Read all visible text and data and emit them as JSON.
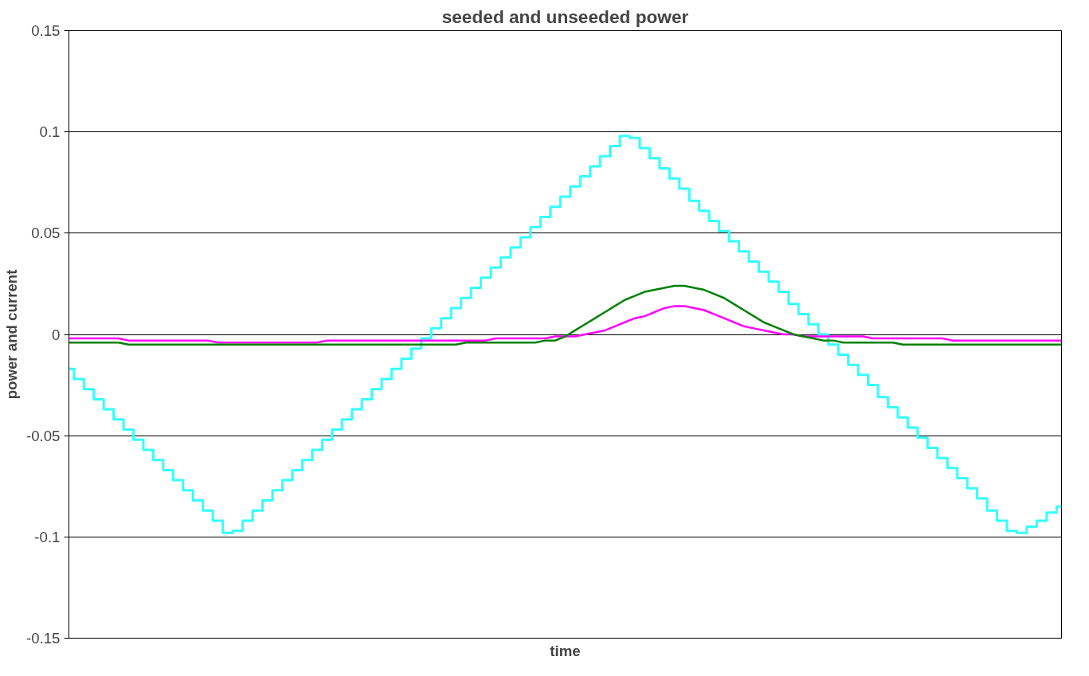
{
  "chart_data": {
    "type": "line",
    "title": "seeded and unseeded power",
    "xlabel": "time",
    "ylabel": "power and current",
    "categories": [
      null,
      null,
      null,
      null,
      null,
      null,
      null,
      null,
      null,
      null,
      null,
      null,
      null,
      null,
      null,
      null,
      null,
      null,
      null,
      null,
      null,
      null,
      null,
      null,
      null,
      null,
      null,
      null,
      null,
      null,
      null,
      null,
      null,
      null,
      null,
      null,
      null,
      null,
      null,
      null,
      null,
      null,
      null,
      null,
      null,
      null,
      null,
      null,
      null,
      null,
      null,
      null,
      null,
      null,
      null,
      null,
      null,
      null,
      null,
      null,
      null,
      null,
      null,
      null,
      null,
      null,
      null,
      null,
      null,
      null,
      null,
      null,
      null,
      null,
      null,
      null,
      null,
      null,
      null,
      null,
      null,
      null,
      null,
      null,
      null,
      null,
      null,
      null,
      null,
      null,
      null,
      null,
      null,
      null,
      null,
      null,
      null,
      null,
      null,
      null,
      null
    ],
    "ylim": [
      -0.15,
      0.15
    ],
    "yticks": [
      -0.15,
      -0.1,
      -0.05,
      0,
      0.05,
      0.1,
      0.15
    ],
    "grid": "y",
    "line_style": "solid",
    "series": [
      {
        "type": "step",
        "color": "#33ffff",
        "values": [
          -0.017,
          -0.022,
          -0.027,
          -0.032,
          -0.037,
          -0.042,
          -0.047,
          -0.052,
          -0.057,
          -0.062,
          -0.067,
          -0.072,
          -0.077,
          -0.082,
          -0.087,
          -0.092,
          -0.098,
          -0.097,
          -0.092,
          -0.087,
          -0.082,
          -0.077,
          -0.072,
          -0.067,
          -0.062,
          -0.057,
          -0.052,
          -0.047,
          -0.042,
          -0.037,
          -0.032,
          -0.027,
          -0.022,
          -0.017,
          -0.012,
          -0.007,
          -0.002,
          0.003,
          0.008,
          0.013,
          0.018,
          0.023,
          0.028,
          0.033,
          0.038,
          0.043,
          0.048,
          0.053,
          0.058,
          0.063,
          0.068,
          0.073,
          0.078,
          0.083,
          0.088,
          0.093,
          0.098,
          0.097,
          0.092,
          0.087,
          0.082,
          0.077,
          0.072,
          0.066,
          0.061,
          0.056,
          0.051,
          0.046,
          0.041,
          0.036,
          0.031,
          0.026,
          0.021,
          0.015,
          0.01,
          0.005,
          0.0,
          -0.005,
          -0.01,
          -0.015,
          -0.02,
          -0.025,
          -0.031,
          -0.036,
          -0.041,
          -0.046,
          -0.051,
          -0.056,
          -0.061,
          -0.066,
          -0.071,
          -0.076,
          -0.081,
          -0.087,
          -0.092,
          -0.097,
          -0.098,
          -0.095,
          -0.092,
          -0.088,
          -0.085
        ]
      },
      {
        "color": "#ff00ff",
        "values": [
          -0.002,
          -0.002,
          -0.002,
          -0.002,
          -0.002,
          -0.002,
          -0.003,
          -0.003,
          -0.003,
          -0.003,
          -0.003,
          -0.003,
          -0.003,
          -0.003,
          -0.003,
          -0.004,
          -0.004,
          -0.004,
          -0.004,
          -0.004,
          -0.004,
          -0.004,
          -0.004,
          -0.004,
          -0.004,
          -0.004,
          -0.003,
          -0.003,
          -0.003,
          -0.003,
          -0.003,
          -0.003,
          -0.003,
          -0.003,
          -0.003,
          -0.003,
          -0.003,
          -0.003,
          -0.003,
          -0.003,
          -0.003,
          -0.003,
          -0.003,
          -0.002,
          -0.002,
          -0.002,
          -0.002,
          -0.002,
          -0.002,
          -0.001,
          -0.001,
          -0.001,
          0.0,
          0.001,
          0.002,
          0.004,
          0.006,
          0.008,
          0.009,
          0.011,
          0.013,
          0.014,
          0.014,
          0.013,
          0.012,
          0.01,
          0.008,
          0.006,
          0.004,
          0.003,
          0.002,
          0.001,
          0.0,
          0.0,
          -0.001,
          -0.001,
          -0.001,
          -0.001,
          -0.001,
          -0.001,
          -0.001,
          -0.002,
          -0.002,
          -0.002,
          -0.002,
          -0.002,
          -0.002,
          -0.002,
          -0.002,
          -0.003,
          -0.003,
          -0.003,
          -0.003,
          -0.003,
          -0.003,
          -0.003,
          -0.003,
          -0.003,
          -0.003,
          -0.003,
          -0.003
        ]
      },
      {
        "color": "#008000",
        "values": [
          -0.004,
          -0.004,
          -0.004,
          -0.004,
          -0.004,
          -0.004,
          -0.005,
          -0.005,
          -0.005,
          -0.005,
          -0.005,
          -0.005,
          -0.005,
          -0.005,
          -0.005,
          -0.005,
          -0.005,
          -0.005,
          -0.005,
          -0.005,
          -0.005,
          -0.005,
          -0.005,
          -0.005,
          -0.005,
          -0.005,
          -0.005,
          -0.005,
          -0.005,
          -0.005,
          -0.005,
          -0.005,
          -0.005,
          -0.005,
          -0.005,
          -0.005,
          -0.005,
          -0.005,
          -0.005,
          -0.005,
          -0.004,
          -0.004,
          -0.004,
          -0.004,
          -0.004,
          -0.004,
          -0.004,
          -0.004,
          -0.003,
          -0.003,
          -0.001,
          0.002,
          0.005,
          0.008,
          0.011,
          0.014,
          0.017,
          0.019,
          0.021,
          0.022,
          0.023,
          0.024,
          0.024,
          0.023,
          0.022,
          0.02,
          0.018,
          0.015,
          0.012,
          0.009,
          0.006,
          0.004,
          0.002,
          0.0,
          -0.001,
          -0.002,
          -0.003,
          -0.003,
          -0.004,
          -0.004,
          -0.004,
          -0.004,
          -0.004,
          -0.004,
          -0.005,
          -0.005,
          -0.005,
          -0.005,
          -0.005,
          -0.005,
          -0.005,
          -0.005,
          -0.005,
          -0.005,
          -0.005,
          -0.005,
          -0.005,
          -0.005,
          -0.005,
          -0.005,
          -0.005
        ]
      }
    ]
  }
}
